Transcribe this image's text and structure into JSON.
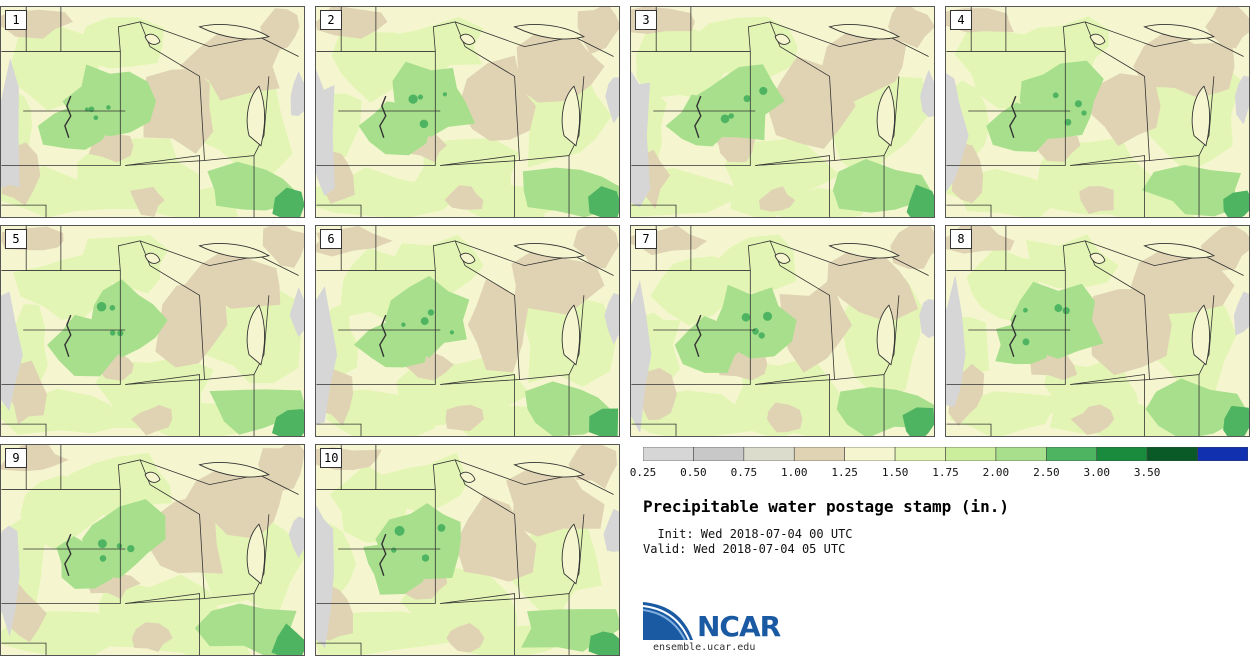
{
  "title": "Precipitable water postage stamp (in.)",
  "init": "  Init: Wed 2018-07-04 00 UTC",
  "valid": "Valid: Wed 2018-07-04 05 UTC",
  "site": "ensemble.ucar.edu",
  "logo_text": "NCAR",
  "members": [
    "1",
    "2",
    "3",
    "4",
    "5",
    "6",
    "7",
    "8",
    "9",
    "10"
  ],
  "colorbar": {
    "ticks": [
      "0.25",
      "0.50",
      "0.75",
      "1.00",
      "1.25",
      "1.50",
      "1.75",
      "2.00",
      "2.50",
      "3.00",
      "3.50"
    ],
    "colors": [
      "#d6d6d6",
      "#c8c8c8",
      "#dcdccc",
      "#e0d3b4",
      "#f5f6cf",
      "#e3f5b4",
      "#cbee9c",
      "#a7df8c",
      "#4fb462",
      "#1a8a3c",
      "#0a5a28",
      "#1030b0"
    ]
  }
}
